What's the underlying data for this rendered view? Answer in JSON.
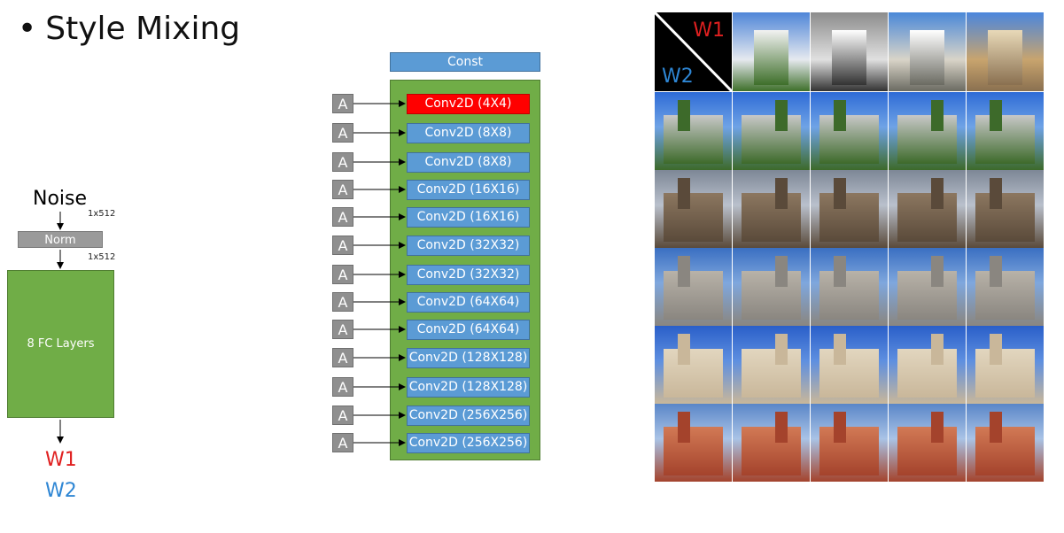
{
  "title": {
    "bullet": "•",
    "text": "Style Mixing"
  },
  "mapping": {
    "noise_label": "Noise",
    "dim_top": "1x512",
    "norm_label": "Norm",
    "dim_bottom": "1x512",
    "fc_label": "8 FC Layers",
    "w1_label": "W1",
    "w2_label": "W2"
  },
  "synthesis": {
    "const_label": "Const",
    "a_label": "A",
    "layers": [
      {
        "label": "Conv2D (4X4)",
        "highlight": true
      },
      {
        "label": "Conv2D (8X8)",
        "highlight": false
      },
      {
        "label": "Conv2D (8X8)",
        "highlight": false
      },
      {
        "label": "Conv2D (16X16)",
        "highlight": false
      },
      {
        "label": "Conv2D (16X16)",
        "highlight": false
      },
      {
        "label": "Conv2D (32X32)",
        "highlight": false
      },
      {
        "label": "Conv2D (32X32)",
        "highlight": false
      },
      {
        "label": "Conv2D (64X64)",
        "highlight": false
      },
      {
        "label": "Conv2D (64X64)",
        "highlight": false
      },
      {
        "label": "Conv2D (128X128)",
        "highlight": false
      },
      {
        "label": "Conv2D (128X128)",
        "highlight": false
      },
      {
        "label": "Conv2D (256X256)",
        "highlight": false
      },
      {
        "label": "Conv2D (256X256)",
        "highlight": false
      }
    ]
  },
  "grid": {
    "corner_w1": "W1",
    "corner_w2": "W2",
    "row_palettes": [
      [
        "#2e6bd6",
        "#6fa3e6",
        "#3d6a2a",
        "#c8c8c8"
      ],
      [
        "#7d8796",
        "#b9c0cc",
        "#5a4a3a",
        "#8c7760"
      ],
      [
        "#3a6fc2",
        "#7fa7dd",
        "#8a8680",
        "#b8b2a8"
      ],
      [
        "#2a5fc9",
        "#5e8fe0",
        "#c9b79a",
        "#e2d6bf"
      ],
      [
        "#5a86c8",
        "#a9c3e6",
        "#a4432c",
        "#d27a55"
      ],
      [
        "#4a4e57",
        "#8b8e96",
        "#4a3e30",
        "#7a6650"
      ]
    ],
    "top_palettes": [
      [
        "#4f86d8",
        "#e6e9ef",
        "#3e6f2a",
        "#f2f2f2"
      ],
      [
        "#8c8c8c",
        "#e0e0e0",
        "#333333",
        "#ffffff"
      ],
      [
        "#4a88d8",
        "#d9d4c8",
        "#6b6b62",
        "#ffffff"
      ],
      [
        "#4b86dd",
        "#c8a46e",
        "#8a7050",
        "#e8d9b8"
      ]
    ]
  },
  "colors": {
    "w1": "#e02020",
    "w2": "#2e86d4",
    "conv_blue": "#5b9bd5",
    "panel_green": "#70ad47",
    "highlight_red": "#ff0000"
  }
}
